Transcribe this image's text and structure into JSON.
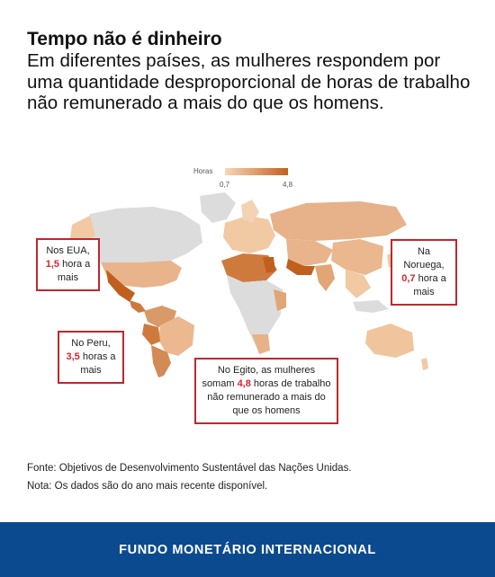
{
  "title": "Tempo não é dinheiro",
  "subtitle": "Em diferentes países, as mulheres respondem por uma quantidade desproporcional de horas de trabalho não remunerado a mais do que os homens.",
  "legend": {
    "label": "Horas",
    "min_label": "0,7",
    "max_label": "4,8",
    "min_value": 0.7,
    "max_value": 4.8,
    "color_low": "#f7d7b7",
    "color_high": "#c0601f",
    "no_data_color": "#dcdcdc"
  },
  "callouts": {
    "usa": {
      "pre": "Nos EUA,",
      "value": "1,5",
      "post": "hora a mais"
    },
    "norway": {
      "pre": "Na Noruega,",
      "value": "0,7",
      "post": "hora a mais"
    },
    "peru": {
      "pre": "No Peru,",
      "value": "3,5",
      "post": "horas a mais"
    },
    "egypt": {
      "pre": "No Egito, as mulheres somam",
      "value": "4,8",
      "post": "horas de trabalho não remunerado a mais do que os homens"
    }
  },
  "source": "Fonte: Objetivos de Desenvolvimento Sustentável das Nações Unidas.",
  "note": "Nota: Os dados são do ano mais recente disponível.",
  "footer": "FUNDO MONETÁRIO INTERNACIONAL"
}
